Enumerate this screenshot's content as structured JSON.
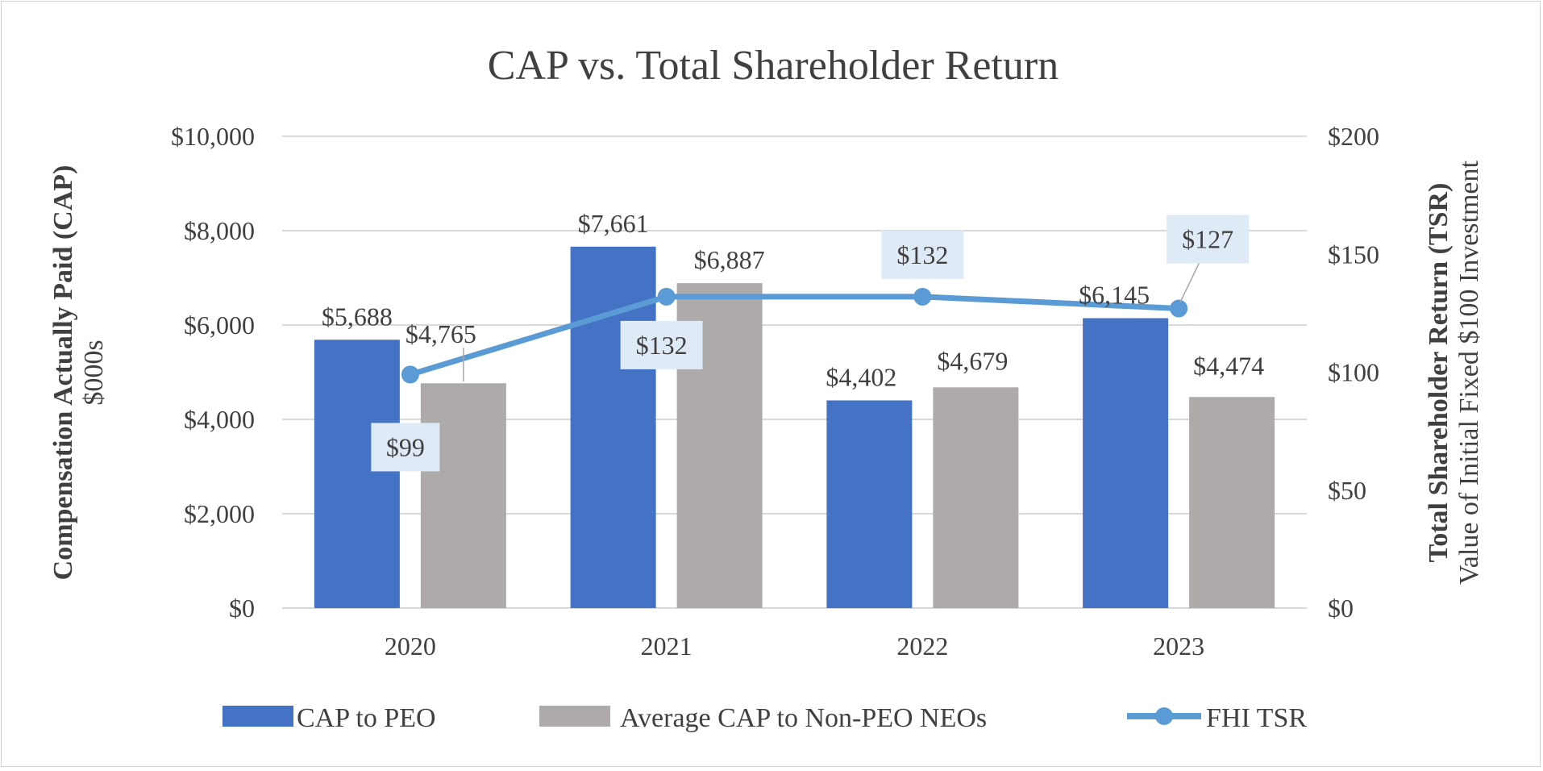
{
  "chart_data": {
    "type": "bar",
    "title": "CAP vs. Total Shareholder Return",
    "categories": [
      "2020",
      "2021",
      "2022",
      "2023"
    ],
    "ylabel": "Compensation Actually Paid (CAP)",
    "ylabel_sub": "$000s",
    "y2label": "Total Shareholder Return (TSR)",
    "y2label_sub": "Value of Initial Fixed $100 Investment",
    "ylim": [
      0,
      10000
    ],
    "y_ticks": [
      "$0",
      "$2,000",
      "$4,000",
      "$6,000",
      "$8,000",
      "$10,000"
    ],
    "y2lim": [
      0,
      200
    ],
    "y2_ticks": [
      "$0",
      "$50",
      "$100",
      "$150",
      "$200"
    ],
    "grid": true,
    "legend_position": "bottom",
    "series": [
      {
        "name": "CAP to PEO",
        "type": "bar",
        "axis": "left",
        "color": "#4472C4",
        "values": [
          5688,
          7661,
          4402,
          6145
        ],
        "labels": [
          "$5,688",
          "$7,661",
          "$4,402",
          "$6,145"
        ]
      },
      {
        "name": "Average CAP to Non-PEO NEOs",
        "type": "bar",
        "axis": "left",
        "color": "#AEAAAA",
        "values": [
          4765,
          6887,
          4679,
          4474
        ],
        "labels": [
          "$4,765",
          "$6,887",
          "$4,679",
          "$4,474"
        ]
      },
      {
        "name": "FHI TSR",
        "type": "line",
        "axis": "right",
        "color": "#5B9BD5",
        "values": [
          99,
          132,
          132,
          127
        ],
        "labels": [
          "$99",
          "$132",
          "$132",
          "$127"
        ]
      }
    ]
  }
}
